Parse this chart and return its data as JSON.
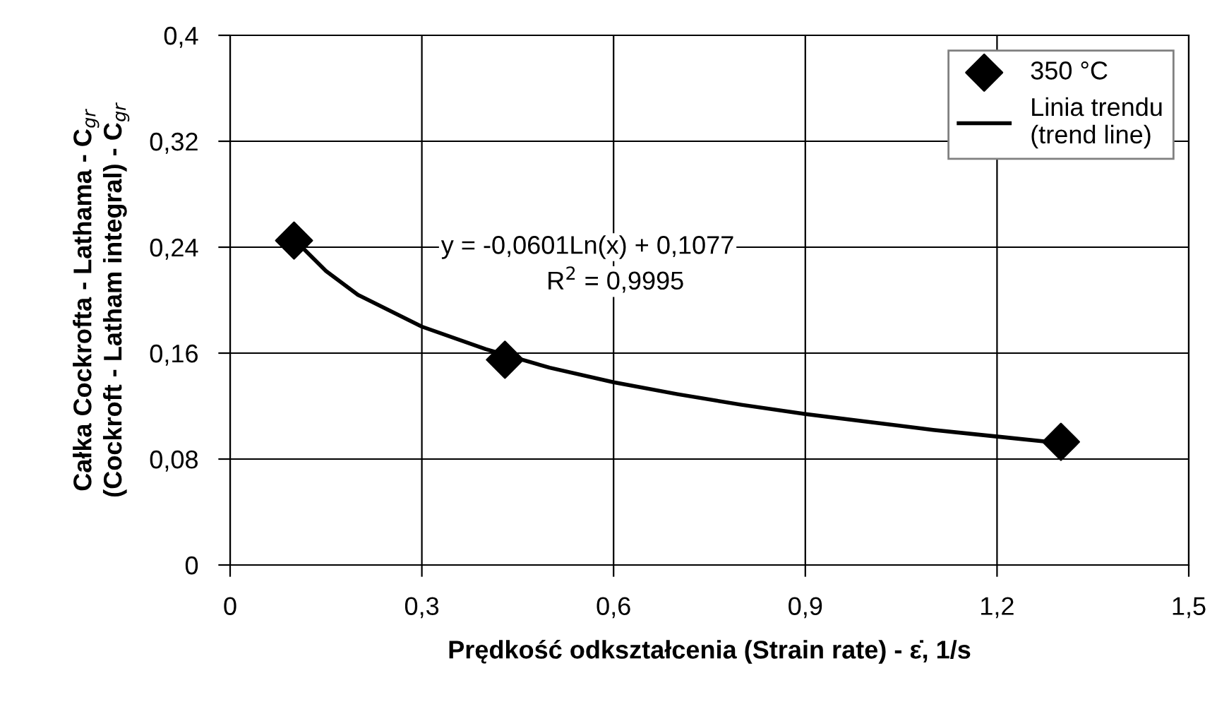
{
  "chart_data": {
    "type": "scatter",
    "xlabel": "Prędkość odkształcenia (Strain rate) - ε̇, 1/s",
    "ylabel": "Całka Cockrofta - Lathama - C$_{gr}$\n(Cockroft - Latham integral) - C$_{gr}$",
    "xlim": [
      0,
      1.5
    ],
    "ylim": [
      0,
      0.4
    ],
    "xticks": [
      0,
      {
        "value": 0.3,
        "label": "0,3"
      },
      {
        "value": 0.6,
        "label": "0,6"
      },
      {
        "value": 0.9,
        "label": "0,9"
      },
      {
        "value": 1.2,
        "label": "1,2"
      },
      {
        "value": 1.5,
        "label": "1,5"
      }
    ],
    "yticks": [
      0,
      {
        "value": 0.08,
        "label": "0,08"
      },
      {
        "value": 0.16,
        "label": "0,16"
      },
      {
        "value": 0.24,
        "label": "0,24"
      },
      {
        "value": 0.32,
        "label": "0,32"
      },
      {
        "value": 0.4,
        "label": "0,4"
      }
    ],
    "grid": true,
    "legend": "top right",
    "annotations": [
      "y = -0,0601Ln(x) + 0,1077",
      "R$^{2}$ = 0,9995"
    ],
    "series": [
      {
        "name": "350 °C",
        "marker": "diamond",
        "color": "#000000",
        "x": [
          0.1,
          0.43,
          1.3
        ],
        "values": [
          0.245,
          0.155,
          0.093
        ]
      },
      {
        "name": "Linia trendu\n(trend line)",
        "type": "line",
        "marker": "none",
        "line_style": "solid",
        "color": "#000000",
        "x": [
          0.1,
          0.15,
          0.2,
          0.3,
          0.4,
          0.5,
          0.6,
          0.7,
          0.8,
          0.9,
          1.0,
          1.1,
          1.2,
          1.3
        ],
        "values": [
          0.246,
          0.222,
          0.204,
          0.18,
          0.163,
          0.149,
          0.138,
          0.129,
          0.121,
          0.114,
          0.108,
          0.102,
          0.097,
          0.092
        ]
      }
    ]
  }
}
